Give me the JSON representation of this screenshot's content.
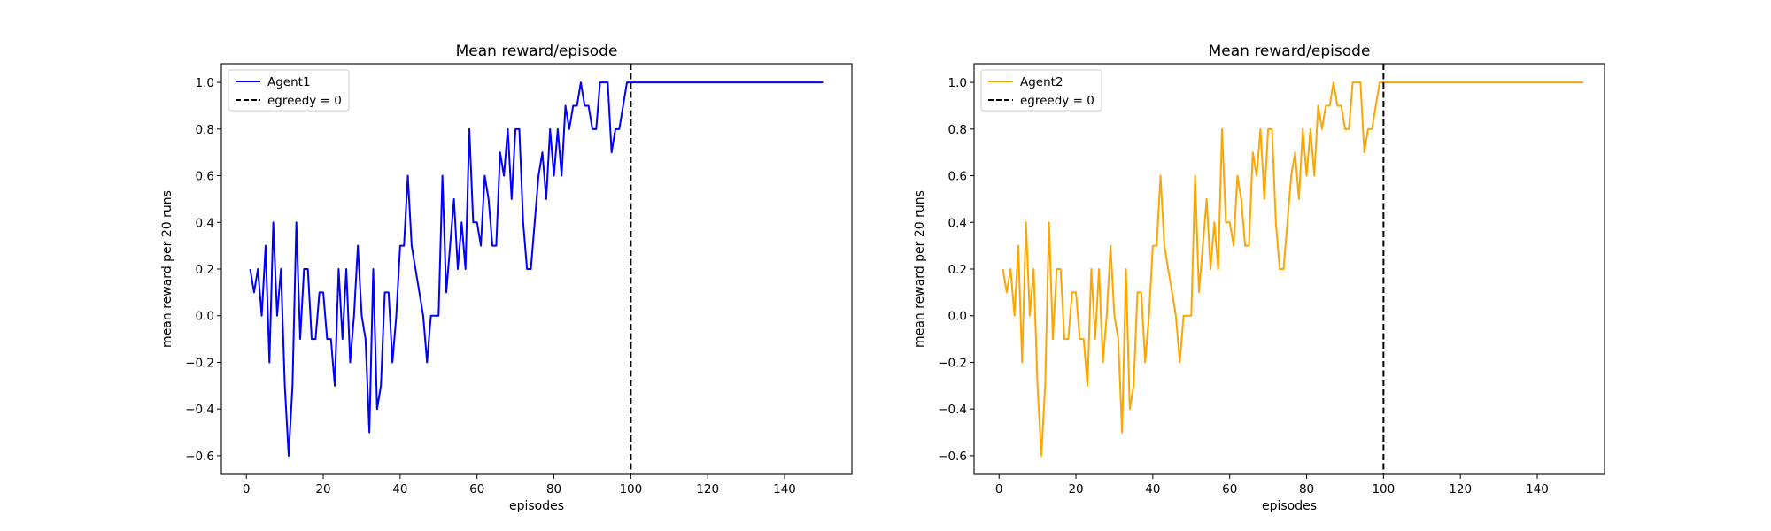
{
  "chart_data": [
    {
      "type": "line",
      "title": "Mean reward/episode",
      "xlabel": "episodes",
      "ylabel": "mean reward per 20 runs",
      "xlim": [
        -6.5,
        157.5
      ],
      "ylim": [
        -0.68,
        1.08
      ],
      "xticks": [
        0,
        20,
        40,
        60,
        80,
        100,
        120,
        140
      ],
      "yticks": [
        -0.6,
        -0.4,
        -0.2,
        0.0,
        0.2,
        0.4,
        0.6,
        0.8,
        1.0
      ],
      "ytick_labels": [
        "−0.6",
        "−0.4",
        "−0.2",
        "0.0",
        "0.2",
        "0.4",
        "0.6",
        "0.8",
        "1.0"
      ],
      "grid": false,
      "legend_position": "top-left",
      "series": [
        {
          "name": "Agent1",
          "color": "#0000ff",
          "x_start": 1,
          "x_step": 1,
          "values": [
            0.2,
            0.1,
            0.2,
            0.0,
            0.3,
            -0.2,
            0.4,
            0.0,
            0.2,
            -0.3,
            -0.6,
            -0.3,
            0.4,
            -0.1,
            0.2,
            0.2,
            -0.1,
            -0.1,
            0.1,
            0.1,
            -0.1,
            -0.1,
            -0.3,
            0.2,
            -0.1,
            0.2,
            -0.2,
            0.0,
            0.3,
            0.0,
            -0.1,
            -0.5,
            0.2,
            -0.4,
            -0.3,
            0.1,
            0.1,
            -0.2,
            0.0,
            0.3,
            0.3,
            0.6,
            0.3,
            0.2,
            0.1,
            0.0,
            -0.2,
            0.0,
            0.0,
            0.0,
            0.6,
            0.1,
            0.3,
            0.5,
            0.2,
            0.4,
            0.2,
            0.8,
            0.4,
            0.4,
            0.3,
            0.6,
            0.5,
            0.3,
            0.3,
            0.7,
            0.6,
            0.8,
            0.5,
            0.8,
            0.8,
            0.4,
            0.2,
            0.2,
            0.4,
            0.6,
            0.7,
            0.5,
            0.8,
            0.6,
            0.8,
            0.6,
            0.9,
            0.8,
            0.9,
            0.9,
            1.0,
            0.9,
            0.9,
            0.8,
            0.8,
            1.0,
            1.0,
            1.0,
            0.7,
            0.8,
            0.8,
            0.9,
            1.0,
            1.0,
            1.0,
            1.0,
            1.0,
            1.0,
            1.0,
            1.0,
            1.0,
            1.0,
            1.0,
            1.0,
            1.0,
            1.0,
            1.0,
            1.0,
            1.0,
            1.0,
            1.0,
            1.0,
            1.0,
            1.0,
            1.0,
            1.0,
            1.0,
            1.0,
            1.0,
            1.0,
            1.0,
            1.0,
            1.0,
            1.0,
            1.0,
            1.0,
            1.0,
            1.0,
            1.0,
            1.0,
            1.0,
            1.0,
            1.0,
            1.0,
            1.0,
            1.0,
            1.0,
            1.0,
            1.0,
            1.0,
            1.0,
            1.0,
            1.0,
            1.0
          ]
        }
      ],
      "vline": {
        "label": "egreedy = 0",
        "x": 100,
        "color": "#000000",
        "style": "dashed"
      }
    },
    {
      "type": "line",
      "title": "Mean reward/episode",
      "xlabel": "episodes",
      "ylabel": "mean reward per 20 runs",
      "xlim": [
        -6.5,
        157.5
      ],
      "ylim": [
        -0.68,
        1.08
      ],
      "xticks": [
        0,
        20,
        40,
        60,
        80,
        100,
        120,
        140
      ],
      "yticks": [
        -0.6,
        -0.4,
        -0.2,
        0.0,
        0.2,
        0.4,
        0.6,
        0.8,
        1.0
      ],
      "ytick_labels": [
        "−0.6",
        "−0.4",
        "−0.2",
        "0.0",
        "0.2",
        "0.4",
        "0.6",
        "0.8",
        "1.0"
      ],
      "grid": false,
      "legend_position": "top-left",
      "series": [
        {
          "name": "Agent2",
          "color": "#ffa500",
          "x_start": 1,
          "x_step": 1,
          "values": [
            0.2,
            0.1,
            0.2,
            0.0,
            0.3,
            -0.2,
            0.4,
            0.0,
            0.2,
            -0.3,
            -0.6,
            -0.3,
            0.4,
            -0.1,
            0.2,
            0.2,
            -0.1,
            -0.1,
            0.1,
            0.1,
            -0.1,
            -0.1,
            -0.3,
            0.2,
            -0.1,
            0.2,
            -0.2,
            0.0,
            0.3,
            0.0,
            -0.1,
            -0.5,
            0.2,
            -0.4,
            -0.3,
            0.1,
            0.1,
            -0.2,
            0.0,
            0.3,
            0.3,
            0.6,
            0.3,
            0.2,
            0.1,
            0.0,
            -0.2,
            0.0,
            0.0,
            0.0,
            0.6,
            0.1,
            0.3,
            0.5,
            0.2,
            0.4,
            0.2,
            0.8,
            0.4,
            0.4,
            0.3,
            0.6,
            0.5,
            0.3,
            0.3,
            0.7,
            0.6,
            0.8,
            0.5,
            0.8,
            0.8,
            0.4,
            0.2,
            0.2,
            0.4,
            0.6,
            0.7,
            0.5,
            0.8,
            0.6,
            0.8,
            0.6,
            0.9,
            0.8,
            0.9,
            0.9,
            1.0,
            0.9,
            0.9,
            0.8,
            0.8,
            1.0,
            1.0,
            1.0,
            0.7,
            0.8,
            0.8,
            0.9,
            1.0,
            1.0,
            1.0,
            1.0,
            1.0,
            1.0,
            1.0,
            1.0,
            1.0,
            1.0,
            1.0,
            1.0,
            1.0,
            1.0,
            1.0,
            1.0,
            1.0,
            1.0,
            1.0,
            1.0,
            1.0,
            1.0,
            1.0,
            1.0,
            1.0,
            1.0,
            1.0,
            1.0,
            1.0,
            1.0,
            1.0,
            1.0,
            1.0,
            1.0,
            1.0,
            1.0,
            1.0,
            1.0,
            1.0,
            1.0,
            1.0,
            1.0,
            1.0,
            1.0,
            1.0,
            1.0,
            1.0,
            1.0,
            1.0,
            1.0,
            1.0,
            1.0,
            1.0,
            1.0
          ]
        }
      ],
      "vline": {
        "label": "egreedy = 0",
        "x": 100,
        "color": "#000000",
        "style": "dashed"
      }
    }
  ]
}
